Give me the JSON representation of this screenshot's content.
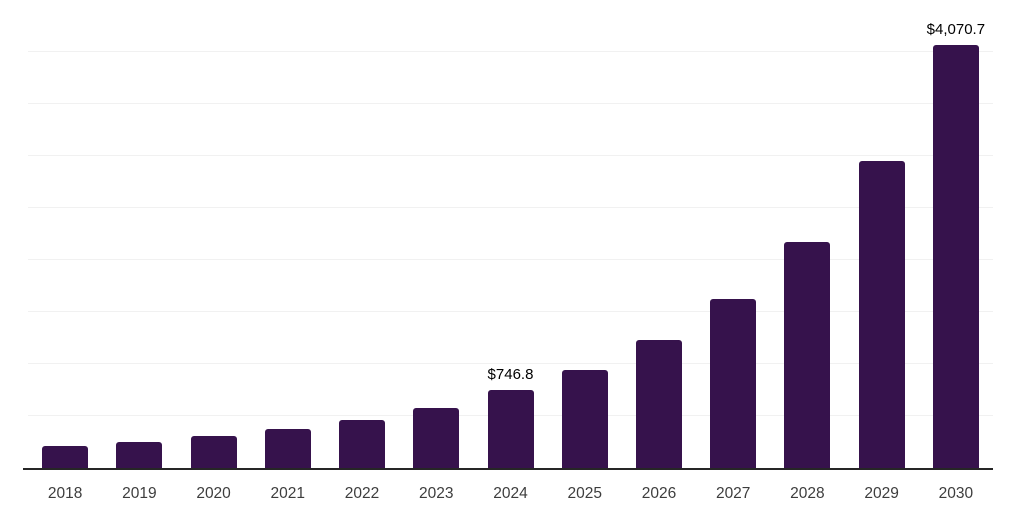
{
  "chart_data": {
    "type": "bar",
    "title": "",
    "xlabel": "",
    "ylabel": "",
    "categories": [
      "2018",
      "2019",
      "2020",
      "2021",
      "2022",
      "2023",
      "2024",
      "2025",
      "2026",
      "2027",
      "2028",
      "2029",
      "2030"
    ],
    "values": [
      210,
      252,
      310,
      376,
      465,
      577,
      746.8,
      945,
      1232,
      1622,
      2170,
      2950,
      4070.7
    ],
    "data_labels": [
      "",
      "",
      "",
      "",
      "",
      "",
      "$746.8",
      "",
      "",
      "",
      "",
      "",
      "$4,070.7"
    ],
    "ylim": [
      0,
      4500
    ],
    "y_gridline_values": [
      500,
      1000,
      1500,
      2000,
      2500,
      3000,
      3500,
      4000,
      4500
    ],
    "grid": true,
    "legend": false,
    "colors": {
      "bar": "#36124C",
      "gridline": "#F1F1F1",
      "axis_line": "#262626",
      "tick_label": "#3D3D3D",
      "value_label": "#000000",
      "background": "#FFFFFF"
    }
  }
}
